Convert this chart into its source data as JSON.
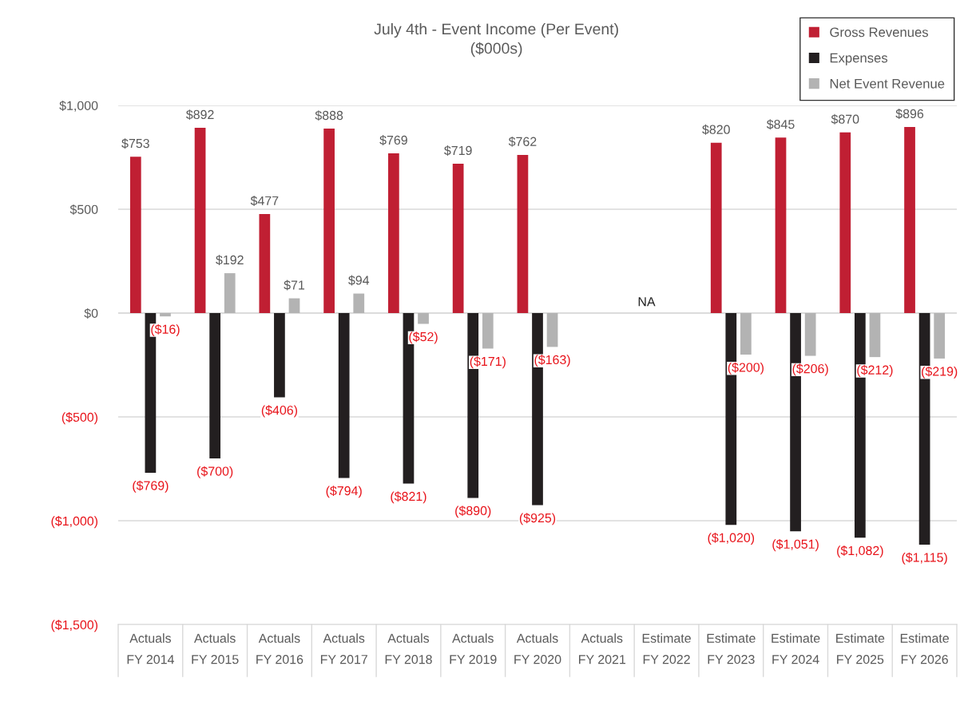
{
  "chart_data": {
    "type": "bar",
    "title": "July 4th - Event Income (Per Event)",
    "subtitle": "($000s)",
    "categories": [
      "Actuals\nFY 2014",
      "Actuals\nFY 2015",
      "Actuals\nFY 2016",
      "Actuals\nFY 2017",
      "Actuals\nFY 2018",
      "Actuals\nFY 2019",
      "Actuals\nFY 2020",
      "Actuals\nFY 2021",
      "Estimate\nFY 2022",
      "Estimate\nFY 2023",
      "Estimate\nFY 2024",
      "Estimate\nFY 2025",
      "Estimate\nFY 2026"
    ],
    "series": [
      {
        "name": "Gross Revenues",
        "color": "#c01f33",
        "values": [
          753,
          892,
          477,
          888,
          769,
          719,
          762,
          null,
          null,
          820,
          845,
          870,
          896
        ],
        "value_labels": [
          "$753",
          "$892",
          "$477",
          "$888",
          "$769",
          "$719",
          "$762",
          null,
          null,
          "$820",
          "$845",
          "$870",
          "$896"
        ]
      },
      {
        "name": "Expenses",
        "color": "#231f20",
        "values": [
          -769,
          -700,
          -406,
          -794,
          -821,
          -890,
          -925,
          null,
          null,
          -1020,
          -1051,
          -1082,
          -1115
        ],
        "value_labels": [
          "($769)",
          "($700)",
          "($406)",
          "($794)",
          "($821)",
          "($890)",
          "($925)",
          null,
          null,
          "($1,020)",
          "($1,051)",
          "($1,082)",
          "($1,115)"
        ]
      },
      {
        "name": "Net Event Revenue",
        "color": "#b3b3b3",
        "values": [
          -16,
          192,
          71,
          94,
          -52,
          -171,
          -163,
          null,
          null,
          -200,
          -206,
          -212,
          -219
        ],
        "value_labels": [
          "($16)",
          "$192",
          "$71",
          "$94",
          "($52)",
          "($171)",
          "($163)",
          null,
          null,
          "($200)",
          "($206)",
          "($212)",
          "($219)"
        ]
      }
    ],
    "ylim": [
      -1500,
      1000
    ],
    "yticks": [
      {
        "value": 1000,
        "label": "$1,000"
      },
      {
        "value": 500,
        "label": "$500"
      },
      {
        "value": 0,
        "label": "$0"
      },
      {
        "value": -500,
        "label": "($500)"
      },
      {
        "value": -1000,
        "label": "($1,000)"
      },
      {
        "value": -1500,
        "label": "($1,500)"
      }
    ],
    "annotations": [
      "NA"
    ],
    "grid": "y",
    "legend": "top right"
  }
}
